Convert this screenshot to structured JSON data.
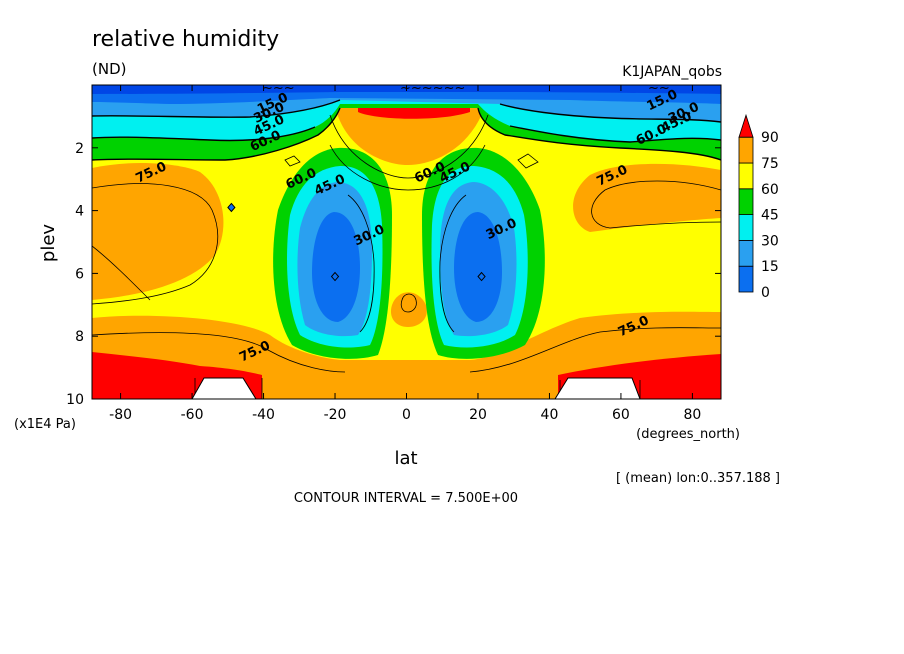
{
  "header": {
    "title": "relative humidity",
    "units": "(ND)",
    "dataset": "K1JAPAN_qobs"
  },
  "footer": {
    "mean_note": "[ (mean) lon:0..357.188 ]",
    "contour_interval": "CONTOUR INTERVAL = 7.500E+00"
  },
  "colors": {
    "band_0_15": "#0b6ff0",
    "band_15_30": "#2aa0f0",
    "band_30_45": "#00f0f0",
    "band_45_60": "#00d200",
    "band_60_75": "#ffff00",
    "band_75_90": "#ffa500",
    "band_90_plus": "#ff0000",
    "top_low": "#0046e6",
    "terrain": "#ffffff"
  },
  "chart_data": {
    "type": "contour",
    "variable": "relative humidity",
    "xlabel": "lat",
    "xunit": "(degrees_north)",
    "ylabel": "plev",
    "yunit": "(x1E4 Pa)",
    "xlim": [
      -88,
      88
    ],
    "ylim": [
      10,
      0
    ],
    "x_ticks": [
      -80,
      -60,
      -40,
      -20,
      0,
      20,
      40,
      60,
      80
    ],
    "x_tick_labels": [
      "-80",
      "-60",
      "-40",
      "-20",
      "0",
      "20",
      "40",
      "60",
      "80"
    ],
    "y_ticks": [
      2,
      4,
      6,
      8,
      10
    ],
    "y_tick_labels": [
      "2",
      "4",
      "6",
      "8",
      "10"
    ],
    "contour_interval": 7.5,
    "colorbar": {
      "levels": [
        0,
        15,
        30,
        45,
        60,
        75,
        90
      ],
      "labels": [
        "0",
        "15",
        "30",
        "45",
        "60",
        "75",
        "90"
      ],
      "extend": "max"
    },
    "contour_labels": [
      {
        "text": "75.0",
        "lat": -71,
        "plev": 2.9
      },
      {
        "text": "75.0",
        "lat": 58,
        "plev": 3.0
      },
      {
        "text": "75.0",
        "lat": 64,
        "plev": 7.8
      },
      {
        "text": "75.0",
        "lat": -42,
        "plev": 8.6
      },
      {
        "text": "60.0",
        "lat": -29,
        "plev": 3.1
      },
      {
        "text": "60.0",
        "lat": 7,
        "plev": 2.9
      },
      {
        "text": "60.0",
        "lat": -39,
        "plev": 1.9
      },
      {
        "text": "60.0",
        "lat": 69,
        "plev": 1.7
      },
      {
        "text": "45.0",
        "lat": -21,
        "plev": 3.3
      },
      {
        "text": "45.0",
        "lat": 14,
        "plev": 2.9
      },
      {
        "text": "45.0",
        "lat": -38,
        "plev": 1.4
      },
      {
        "text": "45.0",
        "lat": 76,
        "plev": 1.3
      },
      {
        "text": "30.0",
        "lat": -10,
        "plev": 4.9
      },
      {
        "text": "30.0",
        "lat": 27,
        "plev": 4.7
      },
      {
        "text": "30.0",
        "lat": -38,
        "plev": 1.0
      },
      {
        "text": "30.0",
        "lat": 78,
        "plev": 1.0
      },
      {
        "text": "15.0",
        "lat": -37,
        "plev": 0.7
      },
      {
        "text": "15.0",
        "lat": 72,
        "plev": 0.6
      }
    ],
    "minima": [
      {
        "lat": -20,
        "plev": 6.1
      },
      {
        "lat": 21,
        "plev": 6.1
      },
      {
        "lat": -49,
        "plev": 3.9
      }
    ],
    "terrain_blocks": [
      {
        "lat_start": -62,
        "lat_end": -46,
        "plev_top": 9.4
      },
      {
        "lat_start": 44,
        "lat_end": 65,
        "plev_top": 9.4
      }
    ]
  }
}
